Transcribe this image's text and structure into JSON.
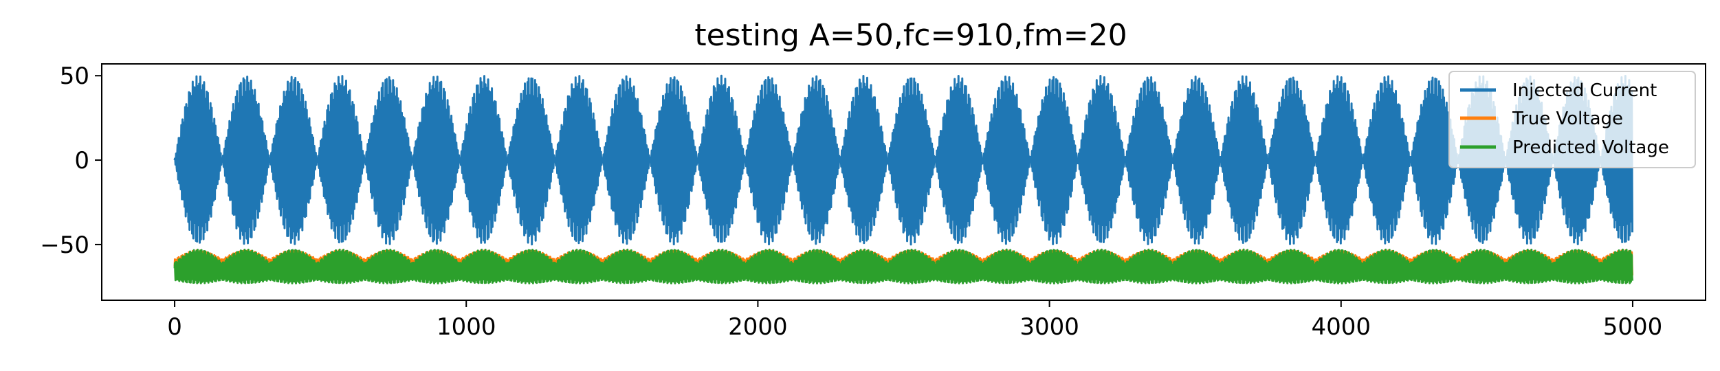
{
  "chart_data": {
    "type": "line",
    "title": "testing A=50,fc=910,fm=20",
    "xlabel": "",
    "ylabel": "",
    "xlim": [
      -250,
      5250
    ],
    "ylim": [
      -83,
      57
    ],
    "x_ticks": [
      0,
      1000,
      2000,
      3000,
      4000,
      5000
    ],
    "x_tick_labels": [
      "0",
      "1000",
      "2000",
      "3000",
      "4000",
      "5000"
    ],
    "y_ticks": [
      50,
      0,
      -50
    ],
    "y_tick_labels": [
      "50",
      "0",
      "−50"
    ],
    "legend_position": "upper right",
    "n_points": 5000,
    "series": [
      {
        "name": "Injected Current",
        "color": "#1f77b4",
        "description_values": {
          "amplitude": 50,
          "offset": 0,
          "carrier_cycles_per_sample": 0.23,
          "envelope_period_samples": 163
        }
      },
      {
        "name": "True Voltage",
        "color": "#ff7f0e",
        "description_values": {
          "center": -63,
          "upper": -55,
          "lower": -70,
          "envelope_period_samples": 163
        }
      },
      {
        "name": "Predicted Voltage",
        "color": "#2ca02c",
        "description_values": {
          "center": -66,
          "upper": -56,
          "lower": -76,
          "envelope_period_samples": 163
        }
      }
    ]
  }
}
